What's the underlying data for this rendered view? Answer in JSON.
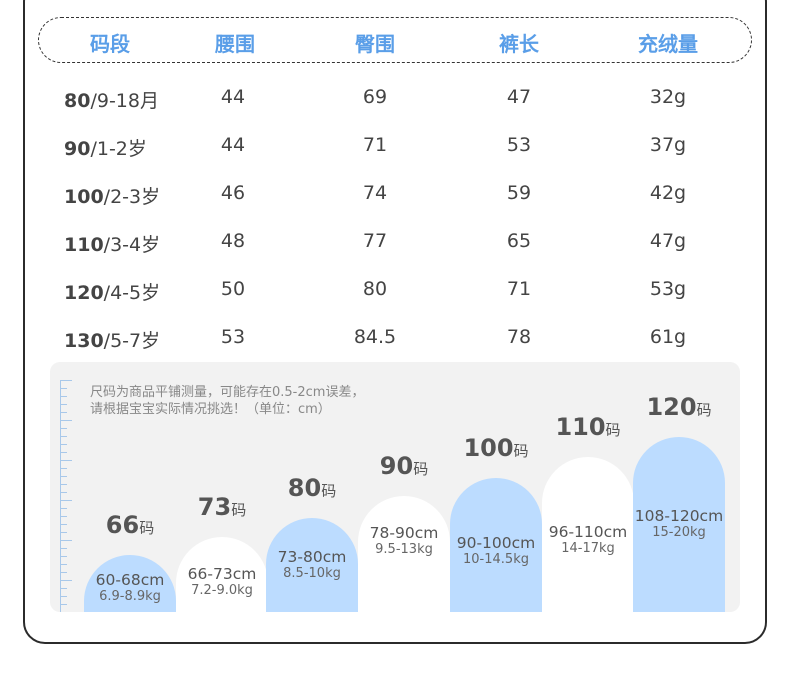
{
  "table": {
    "headers": [
      "码段",
      "腰围",
      "臀围",
      "裤长",
      "充绒量"
    ],
    "rows": [
      {
        "size": "80",
        "age": "/9-18月",
        "waist": "44",
        "hip": "69",
        "length": "47",
        "down": "32g"
      },
      {
        "size": "90",
        "age": "/1-2岁",
        "waist": "44",
        "hip": "71",
        "length": "53",
        "down": "37g"
      },
      {
        "size": "100",
        "age": "/2-3岁",
        "waist": "46",
        "hip": "74",
        "length": "59",
        "down": "42g"
      },
      {
        "size": "110",
        "age": "/3-4岁",
        "waist": "48",
        "hip": "77",
        "length": "65",
        "down": "47g"
      },
      {
        "size": "120",
        "age": "/4-5岁",
        "waist": "50",
        "hip": "80",
        "length": "71",
        "down": "53g"
      },
      {
        "size": "130",
        "age": "/5-7岁",
        "waist": "53",
        "hip": "84.5",
        "length": "78",
        "down": "61g"
      }
    ]
  },
  "guide": {
    "note_line1": "尺码为商品平铺测量，可能存在0.5-2cm误差，",
    "note_line2": "请根据宝宝实际情况挑选！（单位：cm）",
    "unit_suffix": "码",
    "sizes": [
      {
        "size": "66",
        "height": "60-68cm",
        "weight": "6.9-8.9kg",
        "color": "blue"
      },
      {
        "size": "73",
        "height": "66-73cm",
        "weight": "7.2-9.0kg",
        "color": "white"
      },
      {
        "size": "80",
        "height": "73-80cm",
        "weight": "8.5-10kg",
        "color": "blue"
      },
      {
        "size": "90",
        "height": "78-90cm",
        "weight": "9.5-13kg",
        "color": "white"
      },
      {
        "size": "100",
        "height": "90-100cm",
        "weight": "10-14.5kg",
        "color": "blue"
      },
      {
        "size": "110",
        "height": "96-110cm",
        "weight": "14-17kg",
        "color": "white"
      },
      {
        "size": "120",
        "height": "108-120cm",
        "weight": "15-20kg",
        "color": "blue"
      }
    ]
  },
  "colors": {
    "accent": "#5a9ee8",
    "arch_blue": "#bcdcff",
    "panel": "#f2f2f2"
  }
}
